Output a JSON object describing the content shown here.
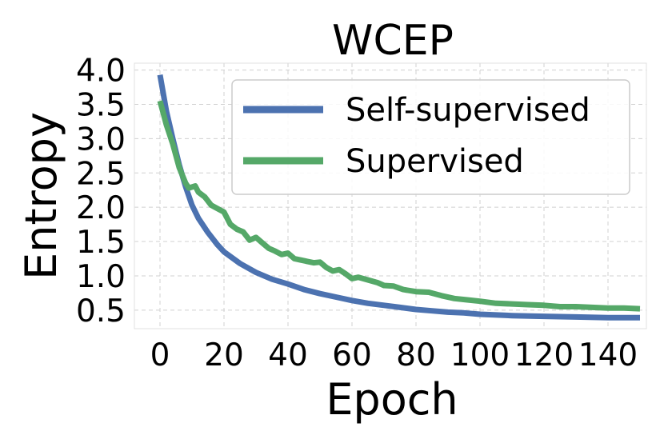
{
  "chart_data": {
    "type": "line",
    "title": "WCEP",
    "xlabel": "Epoch",
    "ylabel": "Entropy",
    "xlim": [
      -8,
      152
    ],
    "ylim": [
      0.23,
      4.1
    ],
    "grid": true,
    "legend_position": "top-right",
    "xticks": [
      0,
      20,
      40,
      60,
      80,
      100,
      120,
      140
    ],
    "xtick_labels": [
      "0",
      "20",
      "40",
      "60",
      "80",
      "100",
      "120",
      "140"
    ],
    "yticks": [
      0.5,
      1.0,
      1.5,
      2.0,
      2.5,
      3.0,
      3.5,
      4.0
    ],
    "ytick_labels": [
      "0.5",
      "1.0",
      "1.5",
      "2.0",
      "2.5",
      "3.0",
      "3.5",
      "4.0"
    ],
    "series": [
      {
        "name": "Self-supervised",
        "color": "#4c72b0",
        "x": [
          0,
          2,
          4,
          6,
          8,
          10,
          12,
          15,
          18,
          20,
          25,
          30,
          35,
          40,
          45,
          50,
          55,
          60,
          65,
          70,
          75,
          80,
          85,
          90,
          95,
          100,
          110,
          120,
          130,
          140,
          150
        ],
        "y": [
          3.93,
          3.4,
          3.0,
          2.62,
          2.3,
          2.03,
          1.84,
          1.63,
          1.45,
          1.35,
          1.18,
          1.05,
          0.95,
          0.88,
          0.8,
          0.74,
          0.69,
          0.64,
          0.6,
          0.57,
          0.54,
          0.51,
          0.49,
          0.47,
          0.46,
          0.44,
          0.42,
          0.41,
          0.4,
          0.39,
          0.39
        ]
      },
      {
        "name": "Supervised",
        "color": "#55a868",
        "x": [
          0,
          2,
          4,
          6,
          8,
          9,
          11,
          12,
          14,
          16,
          18,
          20,
          22,
          24,
          26,
          28,
          30,
          32,
          34,
          36,
          38,
          40,
          42,
          44,
          46,
          48,
          50,
          52,
          54,
          56,
          58,
          60,
          62,
          65,
          68,
          70,
          73,
          76,
          80,
          84,
          88,
          92,
          96,
          100,
          105,
          110,
          115,
          120,
          125,
          130,
          135,
          140,
          145,
          150
        ],
        "y": [
          3.55,
          3.2,
          2.92,
          2.58,
          2.35,
          2.28,
          2.31,
          2.22,
          2.15,
          2.03,
          1.98,
          1.93,
          1.75,
          1.68,
          1.64,
          1.52,
          1.56,
          1.48,
          1.4,
          1.36,
          1.31,
          1.33,
          1.25,
          1.23,
          1.21,
          1.19,
          1.2,
          1.12,
          1.07,
          1.09,
          1.03,
          0.96,
          0.98,
          0.94,
          0.9,
          0.86,
          0.85,
          0.8,
          0.77,
          0.76,
          0.71,
          0.67,
          0.65,
          0.63,
          0.6,
          0.59,
          0.58,
          0.57,
          0.55,
          0.55,
          0.54,
          0.53,
          0.53,
          0.52
        ]
      }
    ]
  }
}
